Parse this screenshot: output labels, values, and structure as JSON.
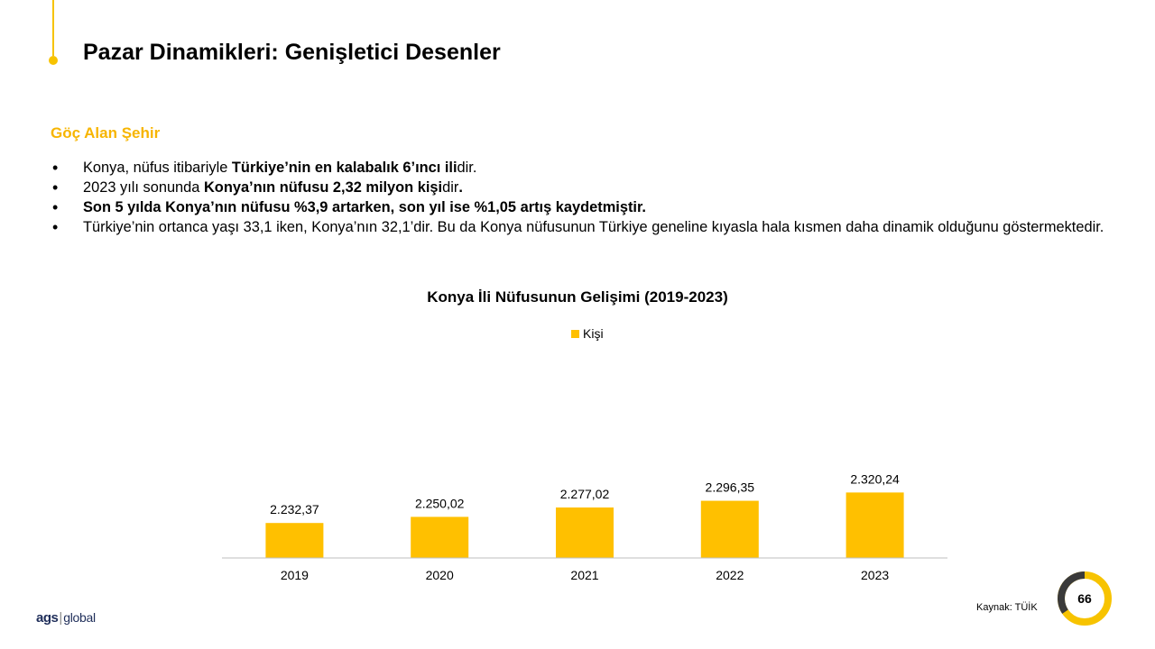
{
  "slide": {
    "title": "Pazar Dinamikleri: Genişletici Desenler",
    "section": "Göç Alan Şehir",
    "bullets": [
      [
        {
          "t": "Konya, nüfus itibariyle ",
          "b": false
        },
        {
          "t": "Türkiye’nin en kalabalık 6’ıncı ili",
          "b": true
        },
        {
          "t": "dir.",
          "b": false
        }
      ],
      [
        {
          "t": "2023 yılı sonunda ",
          "b": false
        },
        {
          "t": "Konya’nın nüfusu 2,32 milyon kişi",
          "b": true
        },
        {
          "t": "dir",
          "b": false
        },
        {
          "t": ".",
          "b": true
        }
      ],
      [
        {
          "t": "Son 5 yılda Konya’nın nüfusu %3,9 artarken, son yıl ise %1,05 artış kaydetmiştir.",
          "b": true
        }
      ],
      [
        {
          "t": "Türkiye’nin ortanca yaşı 33,1 iken, Konya’nın 32,1’dir. Bu da Konya nüfusunun Türkiye geneline kıyasla hala kısmen daha dinamik olduğunu göstermektedir.",
          "b": false
        }
      ]
    ],
    "source": "Kaynak: TÜİK",
    "page_number": "66",
    "logo": {
      "brand": "ags",
      "separator": "|",
      "suffix": "global"
    }
  },
  "colors": {
    "accent": "#f7c300",
    "bar": "#ffc000",
    "section": "#f7b500",
    "badge_dark": "#3a3a3a"
  },
  "chart_data": {
    "type": "bar",
    "title": "Konya İli Nüfusunun Gelişimi (2019-2023)",
    "categories": [
      "2019",
      "2020",
      "2021",
      "2022",
      "2023"
    ],
    "series": [
      {
        "name": "Kişi",
        "values": [
          2232.37,
          2250.02,
          2277.02,
          2296.35,
          2320.24
        ]
      }
    ],
    "data_labels": [
      "2.232,37",
      "2.250,02",
      "2.277,02",
      "2.296,35",
      "2.320,24"
    ],
    "legend_position": "top",
    "grid": false
  }
}
